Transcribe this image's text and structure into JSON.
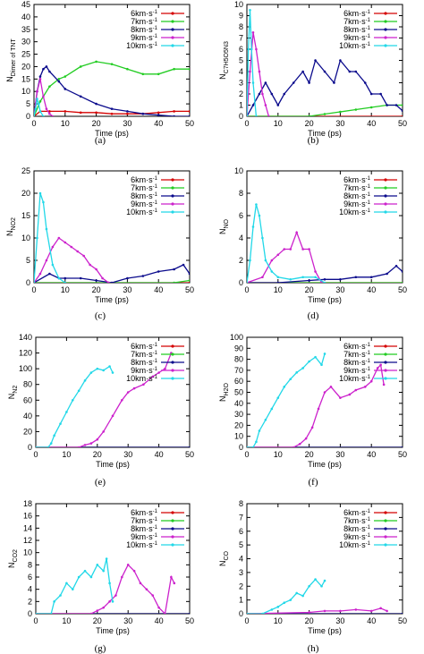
{
  "colors": {
    "6km": "#d40000",
    "7km": "#22cc22",
    "8km": "#0a0a8c",
    "9km": "#cc22cc",
    "10km": "#22d8e8"
  },
  "charts": [
    {
      "type": "line",
      "panel_label": "(a)",
      "xlabel": "Time (ps)",
      "ylabel_main": "N",
      "ylabel_sub": "Dimer of TNT",
      "xlim": [
        0,
        50
      ],
      "ylim": [
        0,
        45
      ],
      "xticks": [
        0,
        10,
        20,
        30,
        40,
        50
      ],
      "yticks": [
        0,
        5,
        10,
        15,
        20,
        25,
        30,
        35,
        40,
        45
      ],
      "series": [
        {
          "key": "6km",
          "name": "6km·s-1",
          "x": [
            0,
            2,
            5,
            10,
            15,
            20,
            25,
            30,
            35,
            40,
            45,
            50
          ],
          "y": [
            0,
            2,
            2,
            2,
            1.5,
            1.5,
            1,
            1,
            1,
            1.5,
            2,
            2
          ]
        },
        {
          "key": "7km",
          "name": "7km·s-1",
          "x": [
            0,
            2,
            5,
            8,
            10,
            15,
            20,
            25,
            30,
            35,
            40,
            45,
            50
          ],
          "y": [
            0,
            6,
            12,
            15,
            16,
            20,
            22,
            21,
            19,
            17,
            17,
            19,
            19
          ]
        },
        {
          "key": "8km",
          "name": "8km·s-1",
          "x": [
            0,
            1,
            2,
            3,
            4,
            5,
            8,
            10,
            15,
            20,
            25,
            30,
            35,
            40,
            45,
            50
          ],
          "y": [
            0,
            10,
            16,
            19,
            20,
            18,
            14,
            11,
            8,
            5,
            3,
            2,
            1,
            0.5,
            0,
            0
          ]
        },
        {
          "key": "9km",
          "name": "9km·s-1",
          "x": [
            0,
            1,
            2,
            3,
            4,
            5,
            6
          ],
          "y": [
            0,
            10,
            15,
            8,
            3,
            1,
            0
          ]
        },
        {
          "key": "10km",
          "name": "10km·s-1",
          "x": [
            0,
            0.5,
            1,
            1.5,
            2,
            3
          ],
          "y": [
            0,
            3,
            7,
            5,
            2,
            0
          ]
        }
      ]
    },
    {
      "type": "line",
      "panel_label": "(b)",
      "xlabel": "Time (ps)",
      "ylabel_main": "N",
      "ylabel_sub": "C7H5O5N3",
      "xlim": [
        0,
        50
      ],
      "ylim": [
        0,
        10
      ],
      "xticks": [
        0,
        10,
        20,
        30,
        40,
        50
      ],
      "yticks": [
        0,
        1,
        2,
        3,
        4,
        5,
        6,
        7,
        8,
        9,
        10
      ],
      "series": [
        {
          "key": "6km",
          "name": "6km·s-1",
          "x": [
            0,
            50
          ],
          "y": [
            0,
            0
          ]
        },
        {
          "key": "7km",
          "name": "7km·s-1",
          "x": [
            0,
            20,
            25,
            30,
            35,
            40,
            45,
            50
          ],
          "y": [
            0,
            0,
            0.2,
            0.4,
            0.6,
            0.8,
            1,
            1
          ]
        },
        {
          "key": "8km",
          "name": "8km·s-1",
          "x": [
            0,
            2,
            4,
            6,
            8,
            10,
            12,
            15,
            18,
            20,
            22,
            25,
            28,
            30,
            33,
            35,
            38,
            40,
            43,
            45,
            48,
            50
          ],
          "y": [
            0,
            1,
            2,
            3,
            2,
            1,
            2,
            3,
            4,
            3,
            5,
            4,
            3,
            5,
            4,
            4,
            3,
            2,
            2,
            1,
            1,
            0.5
          ]
        },
        {
          "key": "9km",
          "name": "9km·s-1",
          "x": [
            0,
            1,
            2,
            3,
            4,
            5,
            6,
            7
          ],
          "y": [
            0,
            4,
            7.5,
            6,
            4,
            2,
            1,
            0
          ]
        },
        {
          "key": "10km",
          "name": "10km·s-1",
          "x": [
            0,
            0.5,
            1,
            1.5,
            2,
            3
          ],
          "y": [
            0,
            6,
            9.5,
            6,
            3,
            0
          ]
        }
      ]
    },
    {
      "type": "line",
      "panel_label": "(c)",
      "xlabel": "Time (ps)",
      "ylabel_main": "N",
      "ylabel_sub": "NO2",
      "xlim": [
        0,
        50
      ],
      "ylim": [
        0,
        25
      ],
      "xticks": [
        0,
        10,
        20,
        30,
        40,
        50
      ],
      "yticks": [
        0,
        5,
        10,
        15,
        20,
        25
      ],
      "series": [
        {
          "key": "6km",
          "name": "6km·s-1",
          "x": [
            0,
            50
          ],
          "y": [
            0,
            0
          ]
        },
        {
          "key": "7km",
          "name": "7km·s-1",
          "x": [
            0,
            45,
            50
          ],
          "y": [
            0,
            0,
            0.5
          ]
        },
        {
          "key": "8km",
          "name": "8km·s-1",
          "x": [
            0,
            5,
            8,
            10,
            15,
            20,
            25,
            30,
            35,
            40,
            45,
            48,
            50
          ],
          "y": [
            0,
            2,
            1,
            1,
            1,
            0.5,
            0,
            1,
            1.5,
            2.5,
            3,
            4,
            2
          ]
        },
        {
          "key": "9km",
          "name": "9km·s-1",
          "x": [
            0,
            2,
            4,
            6,
            8,
            10,
            12,
            14,
            16,
            18,
            20,
            22,
            24
          ],
          "y": [
            0,
            2,
            5,
            8,
            10,
            9,
            8,
            7,
            6,
            4,
            3,
            1,
            0
          ]
        },
        {
          "key": "10km",
          "name": "10km·s-1",
          "x": [
            0,
            1,
            2,
            3,
            4,
            6,
            8,
            10
          ],
          "y": [
            0,
            10,
            20,
            18,
            12,
            4,
            1,
            0
          ]
        }
      ]
    },
    {
      "type": "line",
      "panel_label": "(d)",
      "xlabel": "Time (ps)",
      "ylabel_main": "N",
      "ylabel_sub": "NO",
      "xlim": [
        0,
        50
      ],
      "ylim": [
        0,
        10
      ],
      "xticks": [
        0,
        10,
        20,
        30,
        40,
        50
      ],
      "yticks": [
        0,
        2,
        4,
        6,
        8,
        10
      ],
      "series": [
        {
          "key": "6km",
          "name": "6km·s-1",
          "x": [
            0,
            50
          ],
          "y": [
            0,
            0
          ]
        },
        {
          "key": "7km",
          "name": "7km·s-1",
          "x": [
            0,
            50
          ],
          "y": [
            0,
            0
          ]
        },
        {
          "key": "8km",
          "name": "8km·s-1",
          "x": [
            0,
            10,
            20,
            25,
            30,
            35,
            40,
            45,
            48,
            50
          ],
          "y": [
            0,
            0,
            0.2,
            0.3,
            0.3,
            0.5,
            0.5,
            0.8,
            1.5,
            1
          ]
        },
        {
          "key": "9km",
          "name": "9km·s-1",
          "x": [
            0,
            5,
            8,
            10,
            12,
            14,
            16,
            18,
            20,
            22,
            24
          ],
          "y": [
            0,
            0.5,
            2,
            2.5,
            3,
            3,
            4.5,
            3,
            3,
            1,
            0
          ]
        },
        {
          "key": "10km",
          "name": "10km·s-1",
          "x": [
            0,
            1,
            2,
            3,
            4,
            5,
            6,
            8,
            10,
            14,
            18,
            22,
            25
          ],
          "y": [
            0,
            2,
            5,
            7,
            6,
            4,
            2,
            1,
            0.5,
            0.3,
            0.5,
            0.5,
            0
          ]
        }
      ]
    },
    {
      "type": "line",
      "panel_label": "(e)",
      "xlabel": "Time (ps)",
      "ylabel_main": "N",
      "ylabel_sub": "N2",
      "xlim": [
        0,
        50
      ],
      "ylim": [
        0,
        140
      ],
      "xticks": [
        0,
        10,
        20,
        30,
        40,
        50
      ],
      "yticks": [
        0,
        20,
        40,
        60,
        80,
        100,
        120,
        140
      ],
      "series": [
        {
          "key": "6km",
          "name": "6km·s-1",
          "x": [
            0,
            50
          ],
          "y": [
            0,
            0
          ]
        },
        {
          "key": "7km",
          "name": "7km·s-1",
          "x": [
            0,
            50
          ],
          "y": [
            0,
            0
          ]
        },
        {
          "key": "8km",
          "name": "8km·s-1",
          "x": [
            0,
            50
          ],
          "y": [
            0,
            0
          ]
        },
        {
          "key": "9km",
          "name": "9km·s-1",
          "x": [
            0,
            14,
            16,
            18,
            20,
            22,
            25,
            28,
            30,
            32,
            35,
            38,
            40,
            42,
            44
          ],
          "y": [
            0,
            0,
            3,
            5,
            10,
            20,
            40,
            60,
            70,
            75,
            80,
            90,
            95,
            100,
            120
          ]
        },
        {
          "key": "10km",
          "name": "10km·s-1",
          "x": [
            0,
            4,
            5,
            6,
            8,
            10,
            12,
            14,
            16,
            18,
            20,
            22,
            24,
            25
          ],
          "y": [
            0,
            0,
            5,
            15,
            30,
            45,
            60,
            72,
            85,
            95,
            100,
            98,
            103,
            95
          ]
        }
      ]
    },
    {
      "type": "line",
      "panel_label": "(f)",
      "xlabel": "Time (ps)",
      "ylabel_main": "N",
      "ylabel_sub": "H2O",
      "xlim": [
        0,
        50
      ],
      "ylim": [
        0,
        100
      ],
      "xticks": [
        0,
        10,
        20,
        30,
        40,
        50
      ],
      "yticks": [
        0,
        10,
        20,
        30,
        40,
        50,
        60,
        70,
        80,
        90,
        100
      ],
      "series": [
        {
          "key": "6km",
          "name": "6km·s-1",
          "x": [
            0,
            50
          ],
          "y": [
            0,
            0
          ]
        },
        {
          "key": "7km",
          "name": "7km·s-1",
          "x": [
            0,
            50
          ],
          "y": [
            0,
            0
          ]
        },
        {
          "key": "8km",
          "name": "8km·s-1",
          "x": [
            0,
            50
          ],
          "y": [
            0,
            0
          ]
        },
        {
          "key": "9km",
          "name": "9km·s-1",
          "x": [
            0,
            15,
            17,
            19,
            21,
            23,
            25,
            27,
            30,
            33,
            35,
            38,
            40,
            42,
            43,
            44
          ],
          "y": [
            0,
            0,
            3,
            8,
            18,
            35,
            50,
            55,
            45,
            48,
            52,
            55,
            60,
            72,
            75,
            57
          ]
        },
        {
          "key": "10km",
          "name": "10km·s-1",
          "x": [
            0,
            2,
            3,
            4,
            6,
            8,
            10,
            12,
            14,
            16,
            18,
            20,
            22,
            24,
            25
          ],
          "y": [
            0,
            0,
            5,
            15,
            25,
            35,
            45,
            55,
            62,
            68,
            72,
            78,
            82,
            75,
            85
          ]
        }
      ]
    },
    {
      "type": "line",
      "panel_label": "(g)",
      "xlabel": "Time (ps)",
      "ylabel_main": "N",
      "ylabel_sub": "CO2",
      "xlim": [
        0,
        50
      ],
      "ylim": [
        0,
        18
      ],
      "xticks": [
        0,
        10,
        20,
        30,
        40,
        50
      ],
      "yticks": [
        0,
        2,
        4,
        6,
        8,
        10,
        12,
        14,
        16,
        18
      ],
      "series": [
        {
          "key": "6km",
          "name": "6km·s-1",
          "x": [
            0,
            50
          ],
          "y": [
            0,
            0
          ]
        },
        {
          "key": "7km",
          "name": "7km·s-1",
          "x": [
            0,
            50
          ],
          "y": [
            0,
            0
          ]
        },
        {
          "key": "8km",
          "name": "8km·s-1",
          "x": [
            0,
            50
          ],
          "y": [
            0,
            0
          ]
        },
        {
          "key": "9km",
          "name": "9km·s-1",
          "x": [
            0,
            18,
            20,
            22,
            24,
            26,
            28,
            30,
            32,
            34,
            36,
            38,
            40,
            42,
            44,
            45
          ],
          "y": [
            0,
            0,
            0.5,
            1,
            2,
            3,
            6,
            8,
            7,
            5,
            4,
            3,
            1,
            0,
            6,
            5
          ]
        },
        {
          "key": "10km",
          "name": "10km·s-1",
          "x": [
            0,
            5,
            6,
            8,
            10,
            12,
            14,
            16,
            18,
            20,
            22,
            23,
            24,
            25
          ],
          "y": [
            0,
            0,
            2,
            3,
            5,
            4,
            6,
            7,
            6,
            8,
            7,
            9,
            5,
            2
          ]
        }
      ]
    },
    {
      "type": "line",
      "panel_label": "(h)",
      "xlabel": "Time (ps)",
      "ylabel_main": "N",
      "ylabel_sub": "CO",
      "xlim": [
        0,
        50
      ],
      "ylim": [
        0,
        8
      ],
      "xticks": [
        0,
        10,
        20,
        30,
        40,
        50
      ],
      "yticks": [
        0,
        1,
        2,
        3,
        4,
        5,
        6,
        7,
        8
      ],
      "series": [
        {
          "key": "6km",
          "name": "6km·s-1",
          "x": [
            0,
            50
          ],
          "y": [
            0,
            0
          ]
        },
        {
          "key": "7km",
          "name": "7km·s-1",
          "x": [
            0,
            50
          ],
          "y": [
            0,
            0
          ]
        },
        {
          "key": "8km",
          "name": "8km·s-1",
          "x": [
            0,
            50
          ],
          "y": [
            0,
            0
          ]
        },
        {
          "key": "9km",
          "name": "9km·s-1",
          "x": [
            0,
            20,
            25,
            30,
            35,
            40,
            43,
            45
          ],
          "y": [
            0,
            0.1,
            0.2,
            0.2,
            0.3,
            0.2,
            0.4,
            0.2
          ]
        },
        {
          "key": "10km",
          "name": "10km·s-1",
          "x": [
            0,
            5,
            8,
            10,
            12,
            14,
            16,
            18,
            20,
            22,
            24,
            25
          ],
          "y": [
            0,
            0,
            0.3,
            0.5,
            0.8,
            1,
            1.5,
            1.3,
            2,
            2.5,
            2,
            2.4
          ]
        }
      ]
    }
  ]
}
